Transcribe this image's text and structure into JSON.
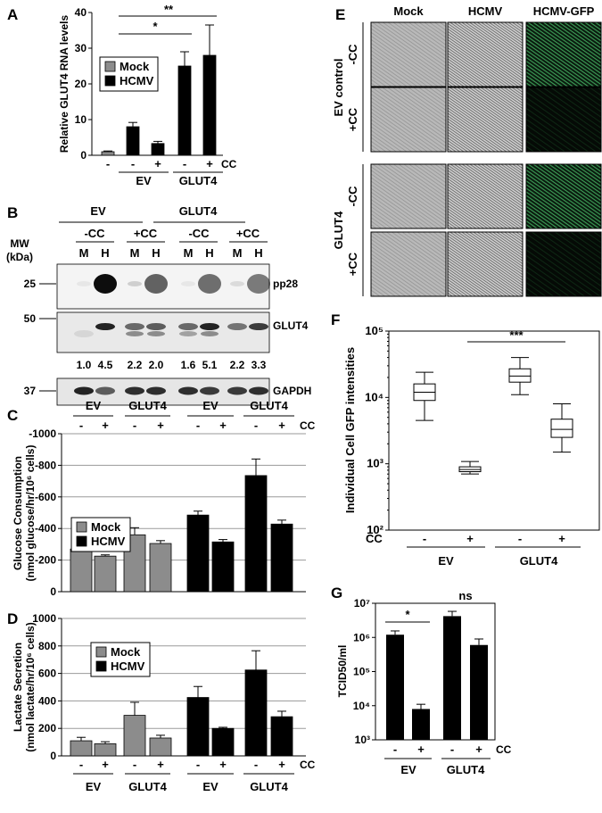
{
  "panel_labels": {
    "A": "A",
    "B": "B",
    "C": "C",
    "D": "D",
    "E": "E",
    "F": "F",
    "G": "G"
  },
  "chart_data": [
    {
      "id": "A",
      "type": "bar",
      "ylabel": "Relative GLUT4 RNA levels",
      "ylim": [
        0,
        40
      ],
      "yticks": [
        0,
        10,
        20,
        30,
        40
      ],
      "cc_header": "CC",
      "cc_labels": [
        "-",
        "-",
        "+",
        "-",
        "+"
      ],
      "group_labels": [
        "EV",
        "GLUT4"
      ],
      "legend": [
        "Mock",
        "HCMV"
      ],
      "series_colors": [
        "#8c8c8c",
        "#000000"
      ],
      "bars": [
        {
          "series": 0,
          "value": 1.0,
          "error": 0.2
        },
        {
          "series": 1,
          "value": 8.0,
          "error": 1.2
        },
        {
          "series": 1,
          "value": 3.3,
          "error": 0.6
        },
        {
          "series": 1,
          "value": 25.0,
          "error": 4.0
        },
        {
          "series": 1,
          "value": 28.0,
          "error": 8.5
        }
      ],
      "significance": [
        "*",
        "**"
      ]
    },
    {
      "id": "C",
      "type": "bar",
      "ylabel_lines": [
        "Glucose Consumption",
        "(nmol glucose/hr/10⁶ cells)"
      ],
      "ylim": [
        -1000,
        0
      ],
      "yticks": [
        0,
        -200,
        -400,
        -600,
        -800,
        -1000
      ],
      "cc_header": "CC",
      "cc_labels": [
        "-",
        "+",
        "-",
        "+",
        "-",
        "+",
        "-",
        "+"
      ],
      "group_labels": [
        "EV",
        "GLUT4",
        "EV",
        "GLUT4"
      ],
      "legend": [
        "Mock",
        "HCMV"
      ],
      "series_colors": [
        "#8c8c8c",
        "#000000"
      ],
      "bars": [
        {
          "series": 0,
          "value": -270,
          "error": 12
        },
        {
          "series": 0,
          "value": -225,
          "error": 8
        },
        {
          "series": 0,
          "value": -360,
          "error": 45
        },
        {
          "series": 0,
          "value": -305,
          "error": 18
        },
        {
          "series": 1,
          "value": -485,
          "error": 25
        },
        {
          "series": 1,
          "value": -315,
          "error": 15
        },
        {
          "series": 1,
          "value": -735,
          "error": 105
        },
        {
          "series": 1,
          "value": -428,
          "error": 25
        }
      ]
    },
    {
      "id": "D",
      "type": "bar",
      "ylabel_lines": [
        "Lactate Secretion",
        "(nmol lactate/hr/10⁶ cells)"
      ],
      "ylim": [
        0,
        1000
      ],
      "yticks": [
        0,
        200,
        400,
        600,
        800,
        1000
      ],
      "cc_header": "CC",
      "cc_labels": [
        "-",
        "+",
        "-",
        "+",
        "-",
        "+",
        "-",
        "+"
      ],
      "group_labels": [
        "EV",
        "GLUT4",
        "EV",
        "GLUT4"
      ],
      "legend": [
        "Mock",
        "HCMV"
      ],
      "series_colors": [
        "#8c8c8c",
        "#000000"
      ],
      "bars": [
        {
          "series": 0,
          "value": 110,
          "error": 25
        },
        {
          "series": 0,
          "value": 88,
          "error": 15
        },
        {
          "series": 0,
          "value": 295,
          "error": 95
        },
        {
          "series": 0,
          "value": 130,
          "error": 20
        },
        {
          "series": 1,
          "value": 425,
          "error": 80
        },
        {
          "series": 1,
          "value": 200,
          "error": 8
        },
        {
          "series": 1,
          "value": 625,
          "error": 140
        },
        {
          "series": 1,
          "value": 285,
          "error": 40
        }
      ]
    },
    {
      "id": "F",
      "type": "box",
      "ylabel": "Individual Cell GFP intensities",
      "yscale": "log",
      "ylim": [
        100,
        100000
      ],
      "ytick_labels": [
        "10²",
        "10³",
        "10⁴",
        "10⁵"
      ],
      "cc_header": "CC",
      "cc_labels": [
        "-",
        "+",
        "-",
        "+"
      ],
      "group_labels": [
        "EV",
        "GLUT4"
      ],
      "boxes": [
        {
          "min": 4500,
          "q1": 9000,
          "median": 12000,
          "q3": 16000,
          "max": 24000
        },
        {
          "min": 700,
          "q1": 760,
          "median": 820,
          "q3": 900,
          "max": 1080
        },
        {
          "min": 11000,
          "q1": 17000,
          "median": 21000,
          "q3": 27000,
          "max": 40000
        },
        {
          "min": 1500,
          "q1": 2500,
          "median": 3300,
          "q3": 4700,
          "max": 8000
        }
      ],
      "significance": [
        "***"
      ]
    },
    {
      "id": "G",
      "type": "bar",
      "yscale": "log",
      "ylabel": "TCID50/ml",
      "ylim": [
        1000,
        10000000
      ],
      "ytick_labels": [
        "10³",
        "10⁴",
        "10⁵",
        "10⁶",
        "10⁷"
      ],
      "cc_header": "CC",
      "cc_labels": [
        "-",
        "+",
        "-",
        "+"
      ],
      "group_labels": [
        "EV",
        "GLUT4"
      ],
      "bars": [
        {
          "value": 1200000,
          "err_hi": 1550000
        },
        {
          "value": 8000,
          "err_hi": 11000
        },
        {
          "value": 4200000,
          "err_hi": 5800000
        },
        {
          "value": 600000,
          "err_hi": 900000
        }
      ],
      "significance": [
        "*",
        "ns"
      ]
    }
  ],
  "blot": {
    "group_headers": [
      "EV",
      "GLUT4"
    ],
    "cc_headers": [
      "-CC",
      "+CC",
      "-CC",
      "+CC"
    ],
    "lane_labels": [
      "M",
      "H",
      "M",
      "H",
      "M",
      "H",
      "M",
      "H"
    ],
    "mw_title": [
      "MW",
      "(kDa)"
    ],
    "mw_markers": [
      "25",
      "50",
      "37"
    ],
    "band_labels": [
      "pp28",
      "GLUT4",
      "GAPDH"
    ],
    "quantification": [
      "1.0",
      "4.5",
      "2.2",
      "2.0",
      "1.6",
      "5.1",
      "2.2",
      "3.3"
    ]
  },
  "micrographs": {
    "col_headers": [
      "Mock",
      "HCMV",
      "HCMV-GFP"
    ],
    "group_labels": [
      "EV control",
      "GLUT4"
    ],
    "row_labels": [
      "-CC",
      "+CC",
      "-CC",
      "+CC"
    ]
  }
}
